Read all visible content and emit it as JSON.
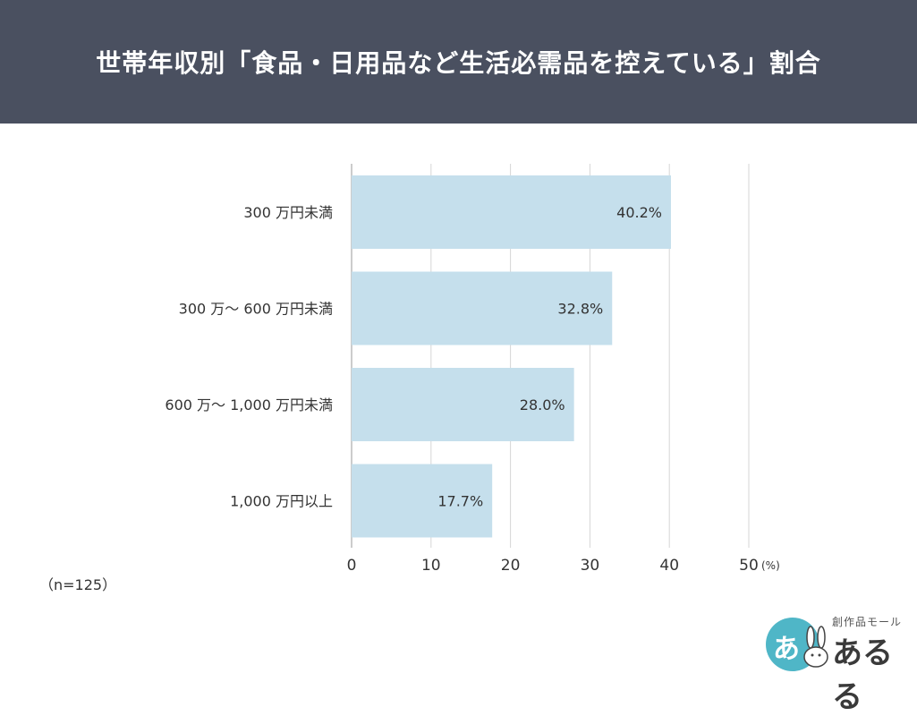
{
  "chart_data": {
    "type": "bar",
    "orientation": "horizontal",
    "title": "世帯年収別「食品・日用品など生活必需品を控えている」割合",
    "categories": [
      "300 万円未満",
      "300 万〜 600 万円未満",
      "600 万〜 1,000 万円未満",
      "1,000 万円以上"
    ],
    "values": [
      40.2,
      32.8,
      28.0,
      17.7
    ],
    "value_labels": [
      "40.2%",
      "32.8%",
      "28.0%",
      "17.7%"
    ],
    "xlim": [
      0,
      50
    ],
    "xticks": [
      0,
      10,
      20,
      30,
      40,
      50
    ],
    "xunit": "(%)",
    "grid": true,
    "bar_color": "#c5dfec"
  },
  "note": "（n=125）",
  "logo": {
    "small_text": "創作品モール",
    "big_text": "あるる",
    "circle_text": "あ",
    "accent": "#4fb6c7"
  }
}
